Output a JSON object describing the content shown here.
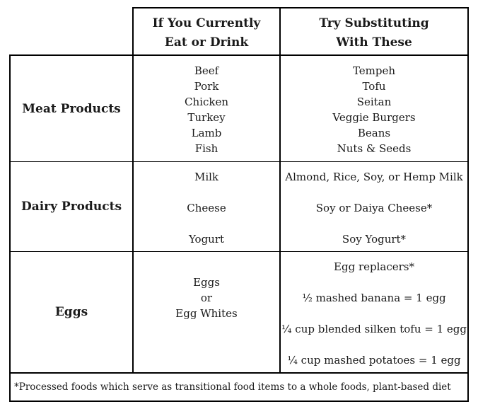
{
  "header": {
    "col1": "",
    "col2_line1": "If You Currently",
    "col2_line2": "Eat or Drink",
    "col3_line1": "Try Substituting",
    "col3_line2": "With These"
  },
  "rows": [
    {
      "category": "Meat Products",
      "current": [
        "Beef",
        "Pork",
        "Chicken",
        "Turkey",
        "Lamb",
        "Fish"
      ],
      "substitutes": [
        "Tempeh",
        "Tofu",
        "Seitan",
        "Veggie Burgers",
        "Beans",
        "Nuts & Seeds"
      ]
    },
    {
      "category": "Dairy Products",
      "current": [
        "Milk",
        "Cheese",
        "Yogurt"
      ],
      "substitutes": [
        "Almond, Rice, Soy, or Hemp Milk",
        "Soy or Daiya Cheese*",
        "Soy Yogurt*"
      ]
    },
    {
      "category": "Eggs",
      "current": [
        "Eggs",
        "or",
        "Egg Whites"
      ],
      "substitutes": [
        "Egg replacers*",
        "½ mashed banana = 1 egg",
        "¼ cup blended silken tofu = 1 egg",
        "¼ cup mashed potatoes = 1 egg"
      ]
    }
  ],
  "footnote": "*Processed foods which serve as transitional food items to a whole foods, plant-based diet"
}
